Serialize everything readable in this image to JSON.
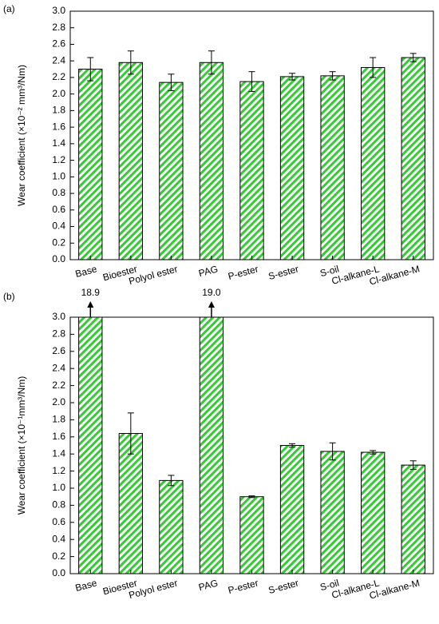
{
  "chart_data": [
    {
      "type": "bar",
      "panel_label": "(a)",
      "ylabel": "Wear coefficient (×10⁻² mm³/Nm)",
      "categories": [
        "Base",
        "Bioester",
        "Polyol ester",
        "PAG",
        "P-ester",
        "S-ester",
        "S-oil",
        "Cl-alkane-L",
        "Cl-alkane-M"
      ],
      "values": [
        2.3,
        2.38,
        2.14,
        2.38,
        2.15,
        2.21,
        2.22,
        2.32,
        2.44
      ],
      "errors": [
        0.14,
        0.14,
        0.1,
        0.14,
        0.12,
        0.04,
        0.05,
        0.12,
        0.05
      ],
      "color": "#33cc33",
      "ylim": [
        0,
        3.0
      ],
      "yticks": [
        {
          "value": 0,
          "label": "0.0"
        },
        0.2,
        0.4,
        0.6,
        0.8,
        {
          "value": 1,
          "label": "1.0"
        },
        1.2,
        1.4,
        1.6,
        1.8,
        {
          "value": 2,
          "label": "2.0"
        },
        2.2,
        2.4,
        2.6,
        2.8,
        {
          "value": 3,
          "label": "3.0"
        }
      ]
    },
    {
      "type": "bar",
      "panel_label": "(b)",
      "ylabel": "Wear coefficient (×10⁻¹mm³/Nm)",
      "categories": [
        "Base",
        "Bioester",
        "Polyol ester",
        "PAG",
        "P-ester",
        "S-ester",
        "S-oil",
        "Cl-alkane-L",
        "Cl-alkane-M"
      ],
      "values": [
        18.9,
        1.64,
        1.09,
        19.0,
        0.9,
        1.5,
        1.43,
        1.42,
        1.27
      ],
      "errors": [
        null,
        0.24,
        0.06,
        null,
        0.01,
        0.02,
        0.1,
        0.02,
        0.05
      ],
      "value_labels": [
        "18.9",
        null,
        null,
        "19.0",
        null,
        null,
        null,
        null,
        null
      ],
      "color": "#33cc33",
      "ylim": [
        0,
        3.0
      ],
      "yticks": [
        {
          "value": 0,
          "label": "0.0"
        },
        0.2,
        0.4,
        0.6,
        0.8,
        {
          "value": 1,
          "label": "1.0"
        },
        1.2,
        1.4,
        1.6,
        1.8,
        {
          "value": 2,
          "label": "2.0"
        },
        2.2,
        2.4,
        2.6,
        2.8,
        {
          "value": 3,
          "label": "3.0"
        }
      ]
    }
  ]
}
